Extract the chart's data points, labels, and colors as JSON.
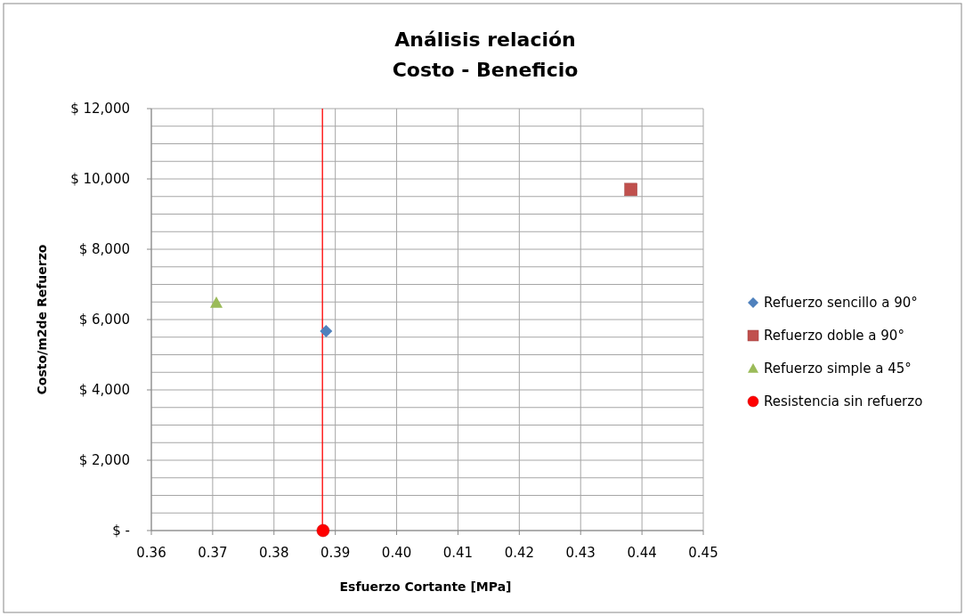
{
  "chart_data": {
    "type": "scatter",
    "title": "Análisis relación\nCosto - Beneficio",
    "xlabel": "Esfuerzo Cortante [MPa]",
    "ylabel": "Costo/m2de Refuerzo",
    "series": [
      {
        "name": "Refuerzo sencillo a 90°",
        "color": "#4f81bd",
        "marker": "diamond",
        "x": [
          0.3885
        ],
        "values": [
          5670
        ]
      },
      {
        "name": "Refuerzo doble a 90°",
        "color": "#c0504d",
        "marker": "square",
        "x": [
          0.4382
        ],
        "values": [
          9700
        ]
      },
      {
        "name": "Refuerzo simple a 45°",
        "color": "#9bbb59",
        "marker": "triangle",
        "x": [
          0.3706
        ],
        "values": [
          6480
        ]
      },
      {
        "name": "Resistencia sin refuerzo",
        "color": "#ff0000",
        "marker": "circle",
        "x": [
          0.388
        ],
        "values": [
          0
        ]
      }
    ],
    "ref_lines": [
      {
        "axis": "x",
        "value": 0.3879,
        "color": "#ff0000"
      }
    ],
    "xlim": [
      0.36,
      0.45
    ],
    "xticks": [
      {
        "value": 0.36,
        "label": "0.36"
      },
      {
        "value": 0.37,
        "label": "0.37"
      },
      {
        "value": 0.38,
        "label": "0.38"
      },
      {
        "value": 0.39,
        "label": "0.39"
      },
      {
        "value": 0.4,
        "label": "0.40"
      },
      {
        "value": 0.41,
        "label": "0.41"
      },
      {
        "value": 0.42,
        "label": "0.42"
      },
      {
        "value": 0.43,
        "label": "0.43"
      },
      {
        "value": 0.44,
        "label": "0.44"
      },
      {
        "value": 0.45,
        "label": "0.45"
      }
    ],
    "ylim": [
      0,
      12000
    ],
    "yticks": [
      {
        "value": 0,
        "label": "$ -"
      },
      {
        "value": 500,
        "label": null
      },
      {
        "value": 1000,
        "label": null
      },
      {
        "value": 1500,
        "label": null
      },
      {
        "value": 2000,
        "label": "$ 2,000"
      },
      {
        "value": 2500,
        "label": null
      },
      {
        "value": 3000,
        "label": null
      },
      {
        "value": 3500,
        "label": null
      },
      {
        "value": 4000,
        "label": "$ 4,000"
      },
      {
        "value": 4500,
        "label": null
      },
      {
        "value": 5000,
        "label": null
      },
      {
        "value": 5500,
        "label": null
      },
      {
        "value": 6000,
        "label": "$ 6,000"
      },
      {
        "value": 6500,
        "label": null
      },
      {
        "value": 7000,
        "label": null
      },
      {
        "value": 7500,
        "label": null
      },
      {
        "value": 8000,
        "label": "$ 8,000"
      },
      {
        "value": 8500,
        "label": null
      },
      {
        "value": 9000,
        "label": null
      },
      {
        "value": 9500,
        "label": null
      },
      {
        "value": 10000,
        "label": "$ 10,000"
      },
      {
        "value": 10500,
        "label": null
      },
      {
        "value": 11000,
        "label": null
      },
      {
        "value": 11500,
        "label": null
      },
      {
        "value": 12000,
        "label": "$ 12,000"
      }
    ],
    "grid": true,
    "legend": "right"
  }
}
